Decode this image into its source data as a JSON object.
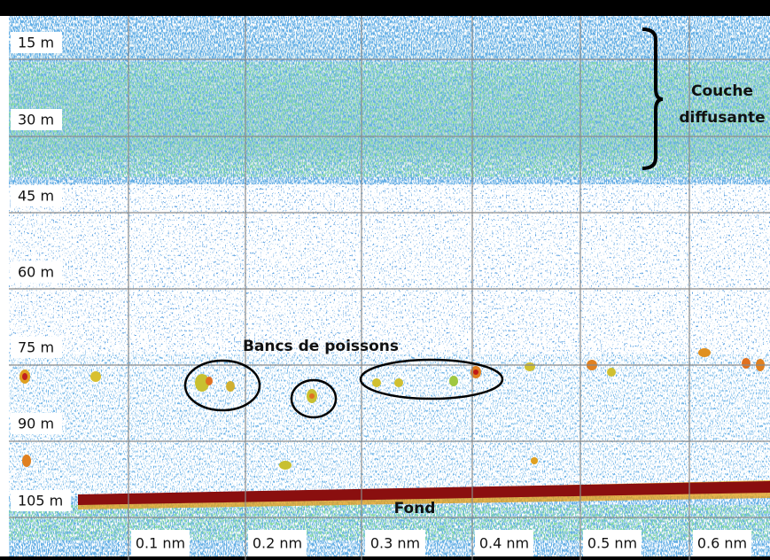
{
  "depth_labels": [
    "15 m",
    "30 m",
    "45 m",
    "60 m",
    "75 m",
    "90 m",
    "105 m"
  ],
  "distance_labels": [
    "0.1 nm",
    "0.2 nm",
    "0.3 nm",
    "0.4 nm",
    "0.5 nm",
    "0.6 nm"
  ],
  "annotations": {
    "scattering_layer": [
      "Couche",
      "diffusante"
    ],
    "fish_schools": "Bancs de poissons",
    "bottom": "Fond"
  }
}
